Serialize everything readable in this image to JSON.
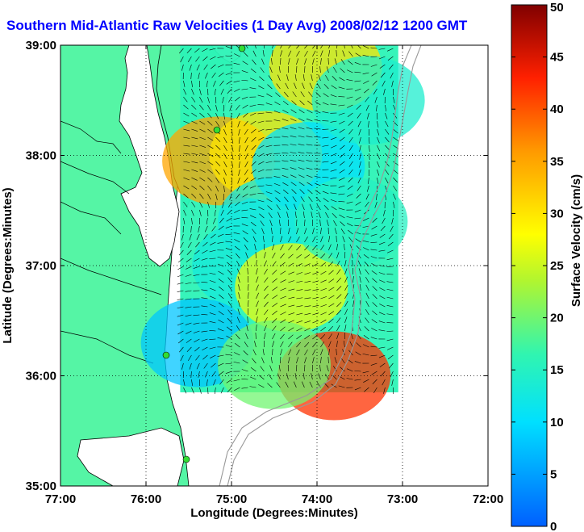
{
  "chart_data": {
    "type": "heatmap",
    "title": "Southern Mid-Atlantic Raw Velocities (1 Day Avg) 2008/02/12 1200 GMT",
    "xlabel": "Longitude (Degrees:Minutes)",
    "ylabel": "Latitude (Degrees:Minutes)",
    "xlim": [
      -77,
      -72
    ],
    "ylim": [
      35,
      39
    ],
    "xticks": [
      {
        "value": -77,
        "label": "77:00"
      },
      {
        "value": -76,
        "label": "76:00"
      },
      {
        "value": -75,
        "label": "75:00"
      },
      {
        "value": -74,
        "label": "74:00"
      },
      {
        "value": -73,
        "label": "73:00"
      },
      {
        "value": -72,
        "label": "72:00"
      }
    ],
    "yticks": [
      {
        "value": 39,
        "label": "39:00"
      },
      {
        "value": 38,
        "label": "38:00"
      },
      {
        "value": 37,
        "label": "37:00"
      },
      {
        "value": 36,
        "label": "36:00"
      },
      {
        "value": 35,
        "label": "35:00"
      }
    ],
    "grid": true,
    "colorbar": {
      "label": "Surface Velocity (cm/s)",
      "min": 0,
      "max": 50,
      "ticks": [
        0,
        5,
        10,
        15,
        20,
        25,
        30,
        35,
        40,
        45,
        50
      ],
      "colormap": "jet"
    },
    "velocity_field": {
      "lon_range": [
        -75.6,
        -73.05
      ],
      "lat_range": [
        35.85,
        39.0
      ],
      "cells": [
        {
          "lon": -75.15,
          "lat": 37.95,
          "speed": 35
        },
        {
          "lon": -74.6,
          "lat": 38.0,
          "speed": 30
        },
        {
          "lon": -73.9,
          "lat": 38.8,
          "speed": 30
        },
        {
          "lon": -74.1,
          "lat": 37.9,
          "speed": 10
        },
        {
          "lon": -74.5,
          "lat": 37.4,
          "speed": 12
        },
        {
          "lon": -74.8,
          "lat": 37.0,
          "speed": 13
        },
        {
          "lon": -75.4,
          "lat": 36.3,
          "speed": 8
        },
        {
          "lon": -74.3,
          "lat": 36.8,
          "speed": 27
        },
        {
          "lon": -73.8,
          "lat": 36.0,
          "speed": 42
        },
        {
          "lon": -73.6,
          "lat": 37.4,
          "speed": 15
        },
        {
          "lon": -74.5,
          "lat": 36.1,
          "speed": 20
        },
        {
          "lon": -73.4,
          "lat": 38.5,
          "speed": 14
        }
      ]
    }
  },
  "colors": {
    "land": "#55f5a5",
    "water": "#ffffff",
    "title": "#0000ff",
    "station": "#33dd33"
  }
}
